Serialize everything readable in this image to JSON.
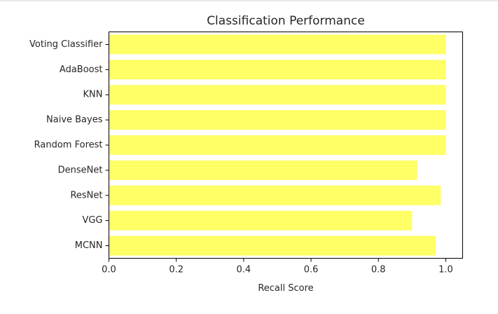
{
  "chart_data": {
    "type": "bar",
    "orientation": "horizontal",
    "title": "Classification Performance",
    "xlabel": "Recall Score",
    "ylabel": "",
    "xlim": [
      0.0,
      1.05
    ],
    "xticks": [
      "0.0",
      "0.2",
      "0.4",
      "0.6",
      "0.8",
      "1.0"
    ],
    "categories": [
      "MCNN",
      "VGG",
      "ResNet",
      "DenseNet",
      "Random Forest",
      "Naive Bayes",
      "KNN",
      "AdaBoost",
      "Voting Classifier"
    ],
    "values": [
      0.97,
      0.9,
      0.985,
      0.915,
      1.0,
      1.0,
      1.0,
      1.0,
      1.0
    ],
    "bar_color": "#ffff66",
    "grid": false,
    "legend": "none"
  }
}
